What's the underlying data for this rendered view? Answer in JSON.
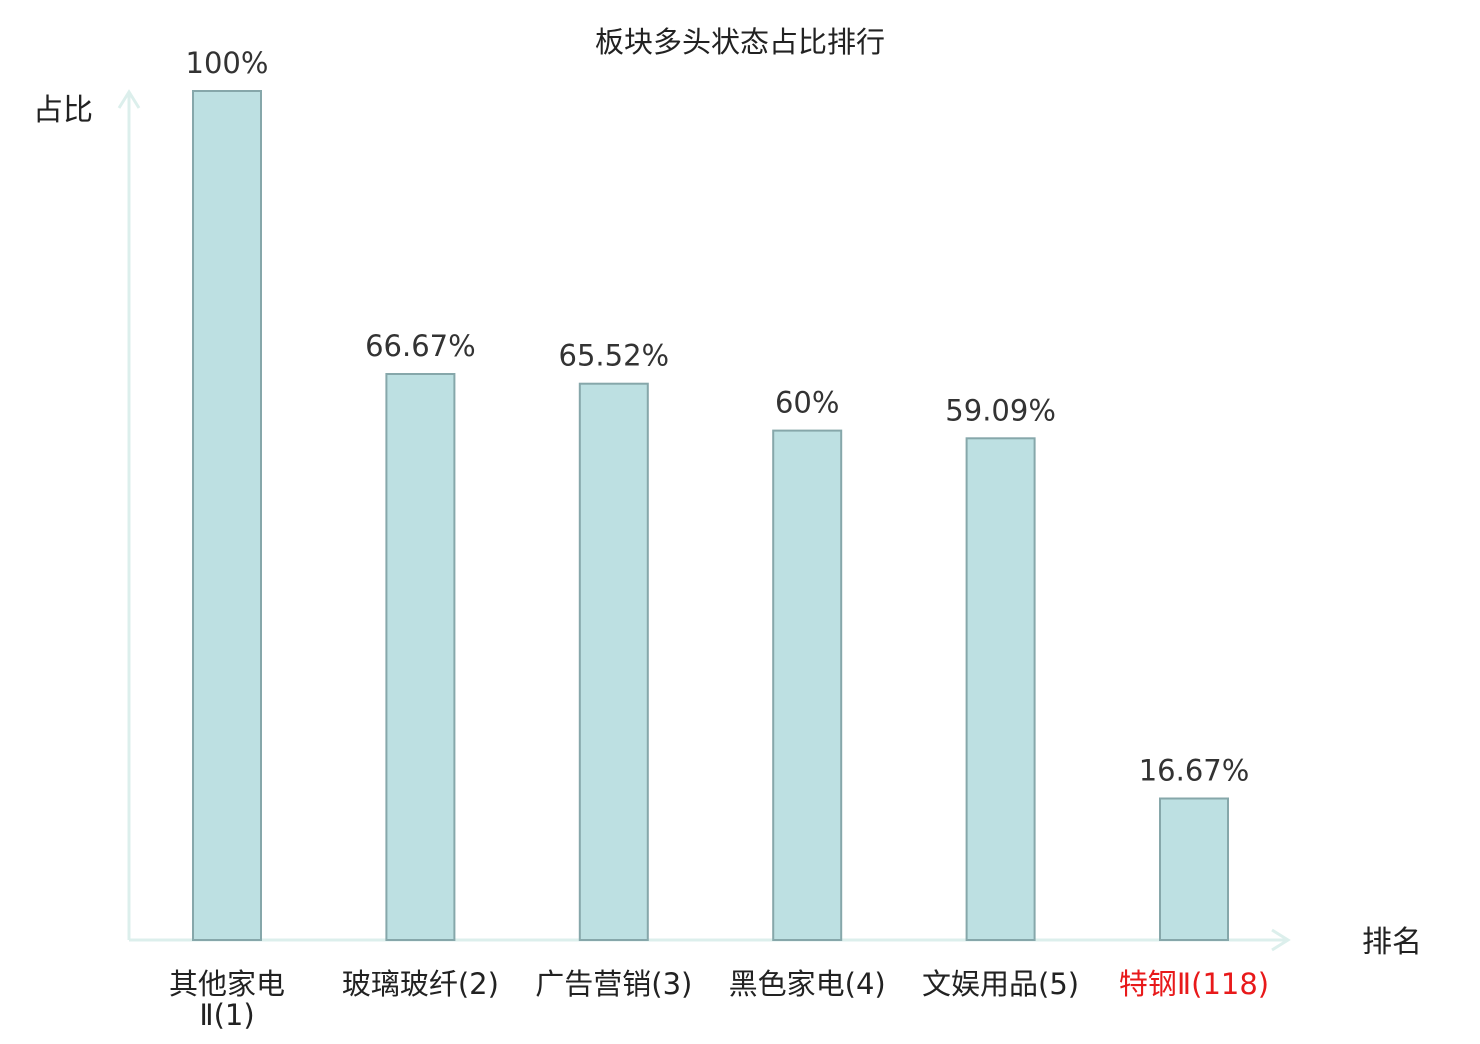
{
  "chart_data": {
    "type": "bar",
    "title": "板块多头状态占比排行",
    "xlabel": "排名",
    "ylabel": "占比",
    "ylim": [
      0,
      100
    ],
    "grid": false,
    "categories": [
      "其他家电Ⅱ(1)",
      "玻璃玻纤(2)",
      "广告营销(3)",
      "黑色家电(4)",
      "文娱用品(5)",
      "特钢Ⅱ(118)"
    ],
    "values": [
      100,
      66.67,
      65.52,
      60,
      59.09,
      16.67
    ],
    "value_labels": [
      "100%",
      "66.67%",
      "65.52%",
      "60%",
      "59.09%",
      "16.67%"
    ],
    "category_label_lines": [
      [
        "其他家电",
        "Ⅱ(1)"
      ],
      [
        "玻璃玻纤(2)"
      ],
      [
        "广告营销(3)"
      ],
      [
        "黑色家电(4)"
      ],
      [
        "文娱用品(5)"
      ],
      [
        "特钢Ⅱ(118)"
      ]
    ],
    "highlight_index": 5,
    "colors": {
      "bar_fill": "#bde0e2",
      "bar_stroke": "#86a7aa",
      "axis": "#dcefec",
      "text": "#222222",
      "value_text": "#333333",
      "highlight": "#e8191a"
    }
  }
}
